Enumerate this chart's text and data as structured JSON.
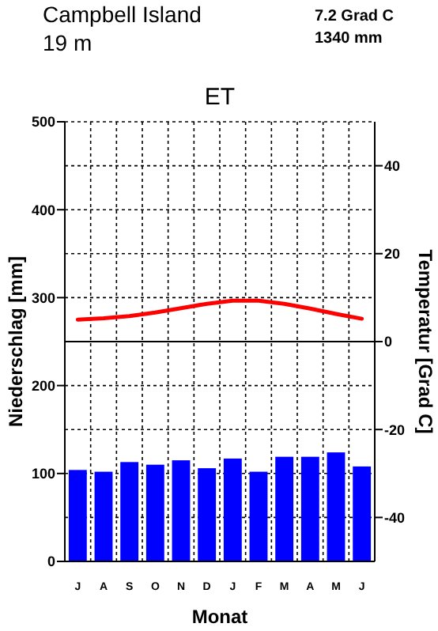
{
  "chart_data": {
    "type": "bar",
    "title": "ET",
    "xlabel": "Monat",
    "ylabel": "Niederschlag [mm]",
    "y2label": "Temperatur [Grad C]",
    "annotations": [
      "Campbell Island",
      "19 m",
      "7.2 Grad C",
      "1340 mm"
    ],
    "categories": [
      "J",
      "A",
      "S",
      "O",
      "N",
      "D",
      "J",
      "F",
      "M",
      "A",
      "M",
      "J"
    ],
    "series": [
      {
        "color": "#0000ff",
        "values": [
          104,
          102,
          113,
          110,
          115,
          106,
          117,
          102,
          119,
          119,
          124,
          108
        ]
      },
      {
        "type": "line",
        "axis": "y2",
        "color": "#ff0000",
        "values": [
          5.0,
          5.3,
          5.8,
          6.6,
          7.6,
          8.6,
          9.3,
          9.3,
          8.6,
          7.5,
          6.3,
          5.2
        ]
      }
    ],
    "ylim": [
      0,
      500
    ],
    "yticks": [
      0,
      100,
      200,
      300,
      400,
      500
    ],
    "y2lim": [
      -50,
      50
    ],
    "y2ticks": [
      -40,
      -20,
      0,
      20,
      40
    ],
    "ref_lines": [
      {
        "axis": "y2",
        "value": 0,
        "color": "#000000",
        "line_style": "solid"
      }
    ],
    "grid": true,
    "marker": "none",
    "line_style": "solid"
  }
}
